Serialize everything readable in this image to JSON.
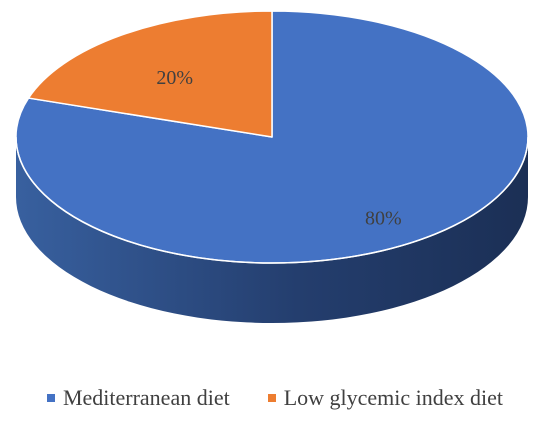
{
  "chart_data": {
    "type": "pie",
    "style": "3d",
    "series": [
      {
        "name": "Mediterranean diet",
        "value": 80,
        "label": "80%",
        "color": "#4472C4"
      },
      {
        "name": "Low glycemic index diet",
        "value": 20,
        "label": "20%",
        "color": "#ED7D31"
      }
    ],
    "legend_position": "bottom"
  }
}
